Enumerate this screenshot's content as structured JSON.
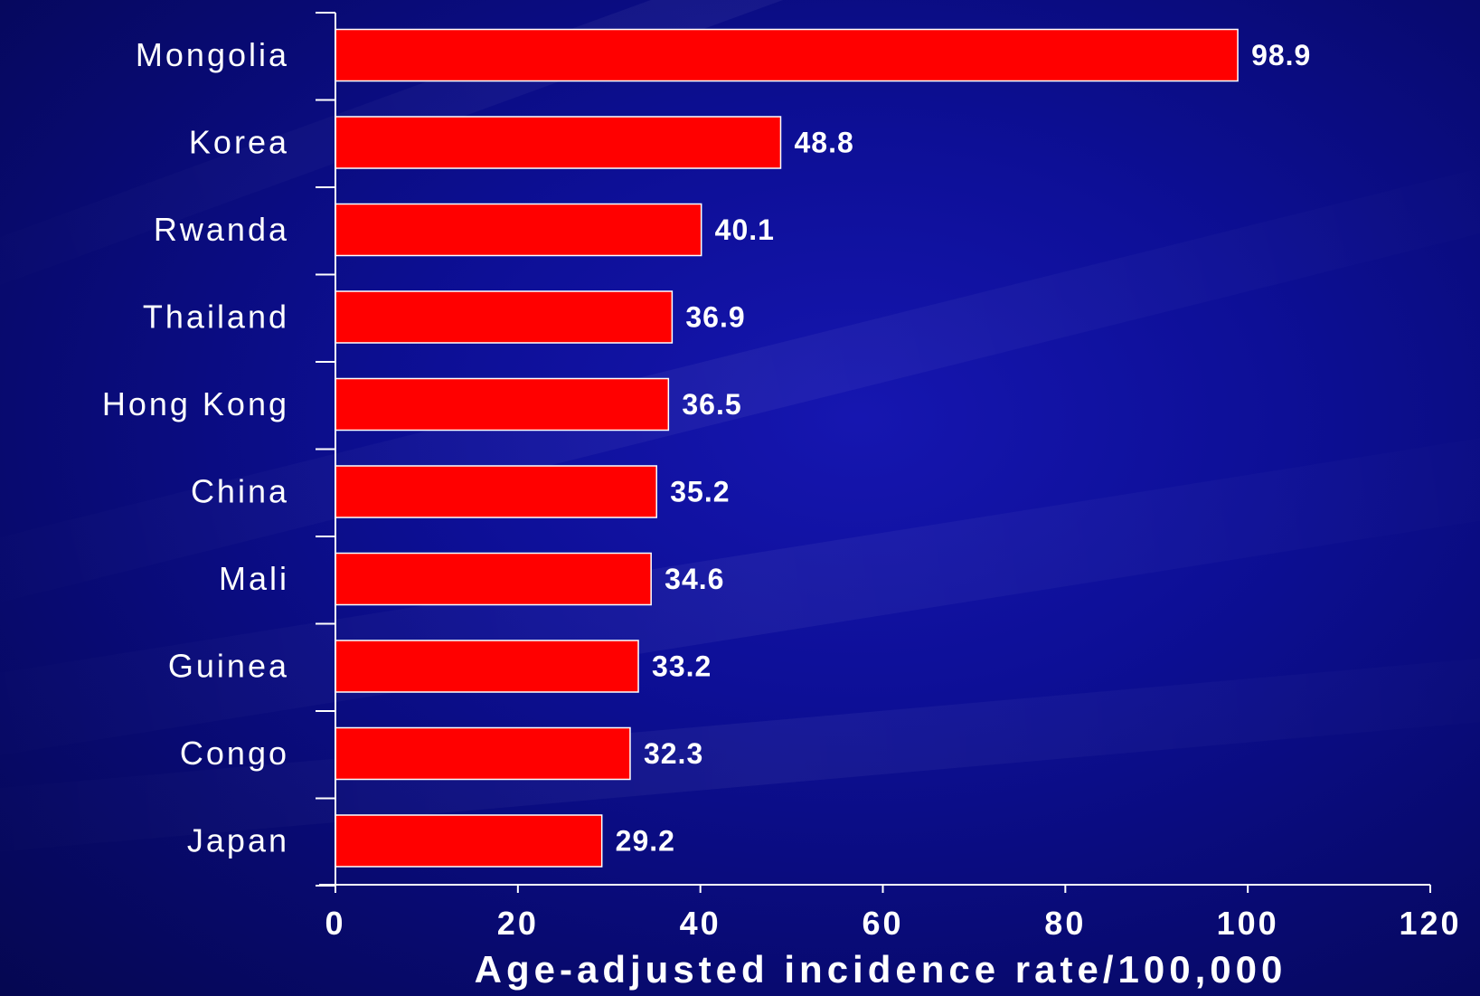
{
  "chart_data": {
    "type": "bar",
    "orientation": "horizontal",
    "categories": [
      "Mongolia",
      "Korea",
      "Rwanda",
      "Thailand",
      "Hong Kong",
      "China",
      "Mali",
      "Guinea",
      "Congo",
      "Japan"
    ],
    "values": [
      98.9,
      48.8,
      40.1,
      36.9,
      36.5,
      35.2,
      34.6,
      33.2,
      32.3,
      29.2
    ],
    "value_labels": [
      "98.9",
      "48.8",
      "40.1",
      "36.9",
      "36.5",
      "35.2",
      "34.6",
      "33.2",
      "32.3",
      "29.2"
    ],
    "xlabel": "Age-adjusted incidence rate/100,000",
    "xlim": [
      0,
      120
    ],
    "xticks": [
      "0",
      "20",
      "40",
      "60",
      "80",
      "100",
      "120"
    ],
    "grid": false,
    "colors": {
      "bar": "#ff0000",
      "bar_outline": "#ffffff",
      "text": "#ffffff",
      "axis": "#ffffff",
      "background": "#0d0f96"
    }
  }
}
